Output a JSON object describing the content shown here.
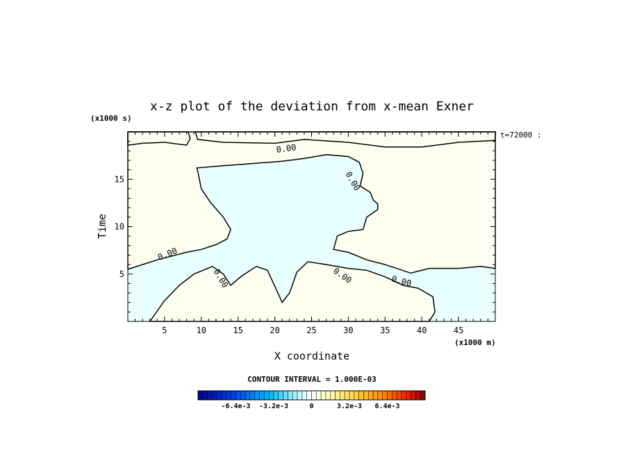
{
  "chart_data": {
    "type": "heatmap",
    "title": "x-z plot of the deviation from x-mean Exner",
    "xlabel": "X coordinate",
    "ylabel": "Time",
    "x_unit": "(x1000 m)",
    "y_unit": "(x1000 s)",
    "time_label": "t=72000 :",
    "xlim": [
      0,
      50
    ],
    "ylim": [
      0,
      20
    ],
    "x_ticks": [
      5,
      10,
      15,
      20,
      25,
      30,
      35,
      40,
      45
    ],
    "y_ticks": [
      5,
      10,
      15
    ],
    "contour_level_label": "0.00",
    "contour_interval_label": "CONTOUR INTERVAL = 1.000E-03",
    "colorbar": {
      "range": [
        -0.0096,
        0.0096
      ],
      "n_bins": 48,
      "tick_values": [
        -0.0064,
        -0.0032,
        0,
        0.0032,
        0.0064
      ],
      "tick_labels": [
        "-6.4e-3",
        "-3.2e-3",
        "0",
        "3.2e-3",
        "6.4e-3"
      ]
    },
    "region_colors": {
      "positive": "#fefef0",
      "negative": "#e8ffff",
      "frame": "#000000"
    },
    "positive_region_polygons": [
      [
        [
          0,
          18.6
        ],
        [
          2,
          18.8
        ],
        [
          5,
          18.9
        ],
        [
          8,
          18.6
        ],
        [
          8.5,
          19.3
        ],
        [
          8.2,
          20
        ],
        [
          0,
          20
        ]
      ],
      [
        [
          9.2,
          20
        ],
        [
          9.5,
          19.2
        ],
        [
          13,
          18.9
        ],
        [
          20,
          18.8
        ],
        [
          24,
          19.2
        ],
        [
          30,
          18.9
        ],
        [
          35,
          18.4
        ],
        [
          40,
          18.4
        ],
        [
          45,
          18.9
        ],
        [
          50,
          19.1
        ],
        [
          50,
          20
        ]
      ],
      [
        [
          0,
          5.5
        ],
        [
          2,
          6
        ],
        [
          4,
          6.5
        ],
        [
          6,
          6.9
        ],
        [
          8,
          7.3
        ],
        [
          10,
          7.6
        ],
        [
          12,
          8.1
        ],
        [
          13.5,
          8.7
        ],
        [
          14,
          9.7
        ],
        [
          13,
          11
        ],
        [
          11.2,
          12.6
        ],
        [
          10,
          14
        ],
        [
          9.6,
          15.5
        ],
        [
          9.4,
          16.2
        ],
        [
          12.5,
          16.4
        ],
        [
          16,
          16.6
        ],
        [
          21,
          16.9
        ],
        [
          24,
          17.2
        ],
        [
          27,
          17.6
        ],
        [
          30,
          17.4
        ],
        [
          31.5,
          16.8
        ],
        [
          32,
          15.6
        ],
        [
          31.6,
          14.3
        ],
        [
          33,
          13.6
        ],
        [
          33.4,
          12.8
        ],
        [
          34,
          12.4
        ],
        [
          34,
          11.8
        ],
        [
          32.5,
          11
        ],
        [
          32,
          9.7
        ],
        [
          30,
          9.5
        ],
        [
          28.5,
          9
        ],
        [
          28,
          7.6
        ],
        [
          30,
          7.3
        ],
        [
          32.5,
          6.5
        ],
        [
          35,
          6
        ],
        [
          38.5,
          5.1
        ],
        [
          41,
          5.6
        ],
        [
          45,
          5.6
        ],
        [
          48,
          5.8
        ],
        [
          50,
          5.6
        ],
        [
          50,
          20
        ],
        [
          0,
          20
        ]
      ],
      [
        [
          3,
          0
        ],
        [
          5,
          2.2
        ],
        [
          7,
          3.8
        ],
        [
          9,
          5
        ],
        [
          11.5,
          5.8
        ],
        [
          13,
          5
        ],
        [
          14,
          3.8
        ],
        [
          15.5,
          4.8
        ],
        [
          17.5,
          5.8
        ],
        [
          19,
          5.4
        ],
        [
          20.3,
          3.2
        ],
        [
          21,
          2
        ],
        [
          22,
          3
        ],
        [
          23,
          5.2
        ],
        [
          24.5,
          6.3
        ],
        [
          27,
          6
        ],
        [
          30,
          5.6
        ],
        [
          32.5,
          5.4
        ],
        [
          35,
          4.7
        ],
        [
          37.5,
          3.8
        ],
        [
          39.5,
          3.5
        ],
        [
          41.5,
          2.6
        ],
        [
          41.8,
          1
        ],
        [
          41,
          0
        ]
      ]
    ]
  }
}
